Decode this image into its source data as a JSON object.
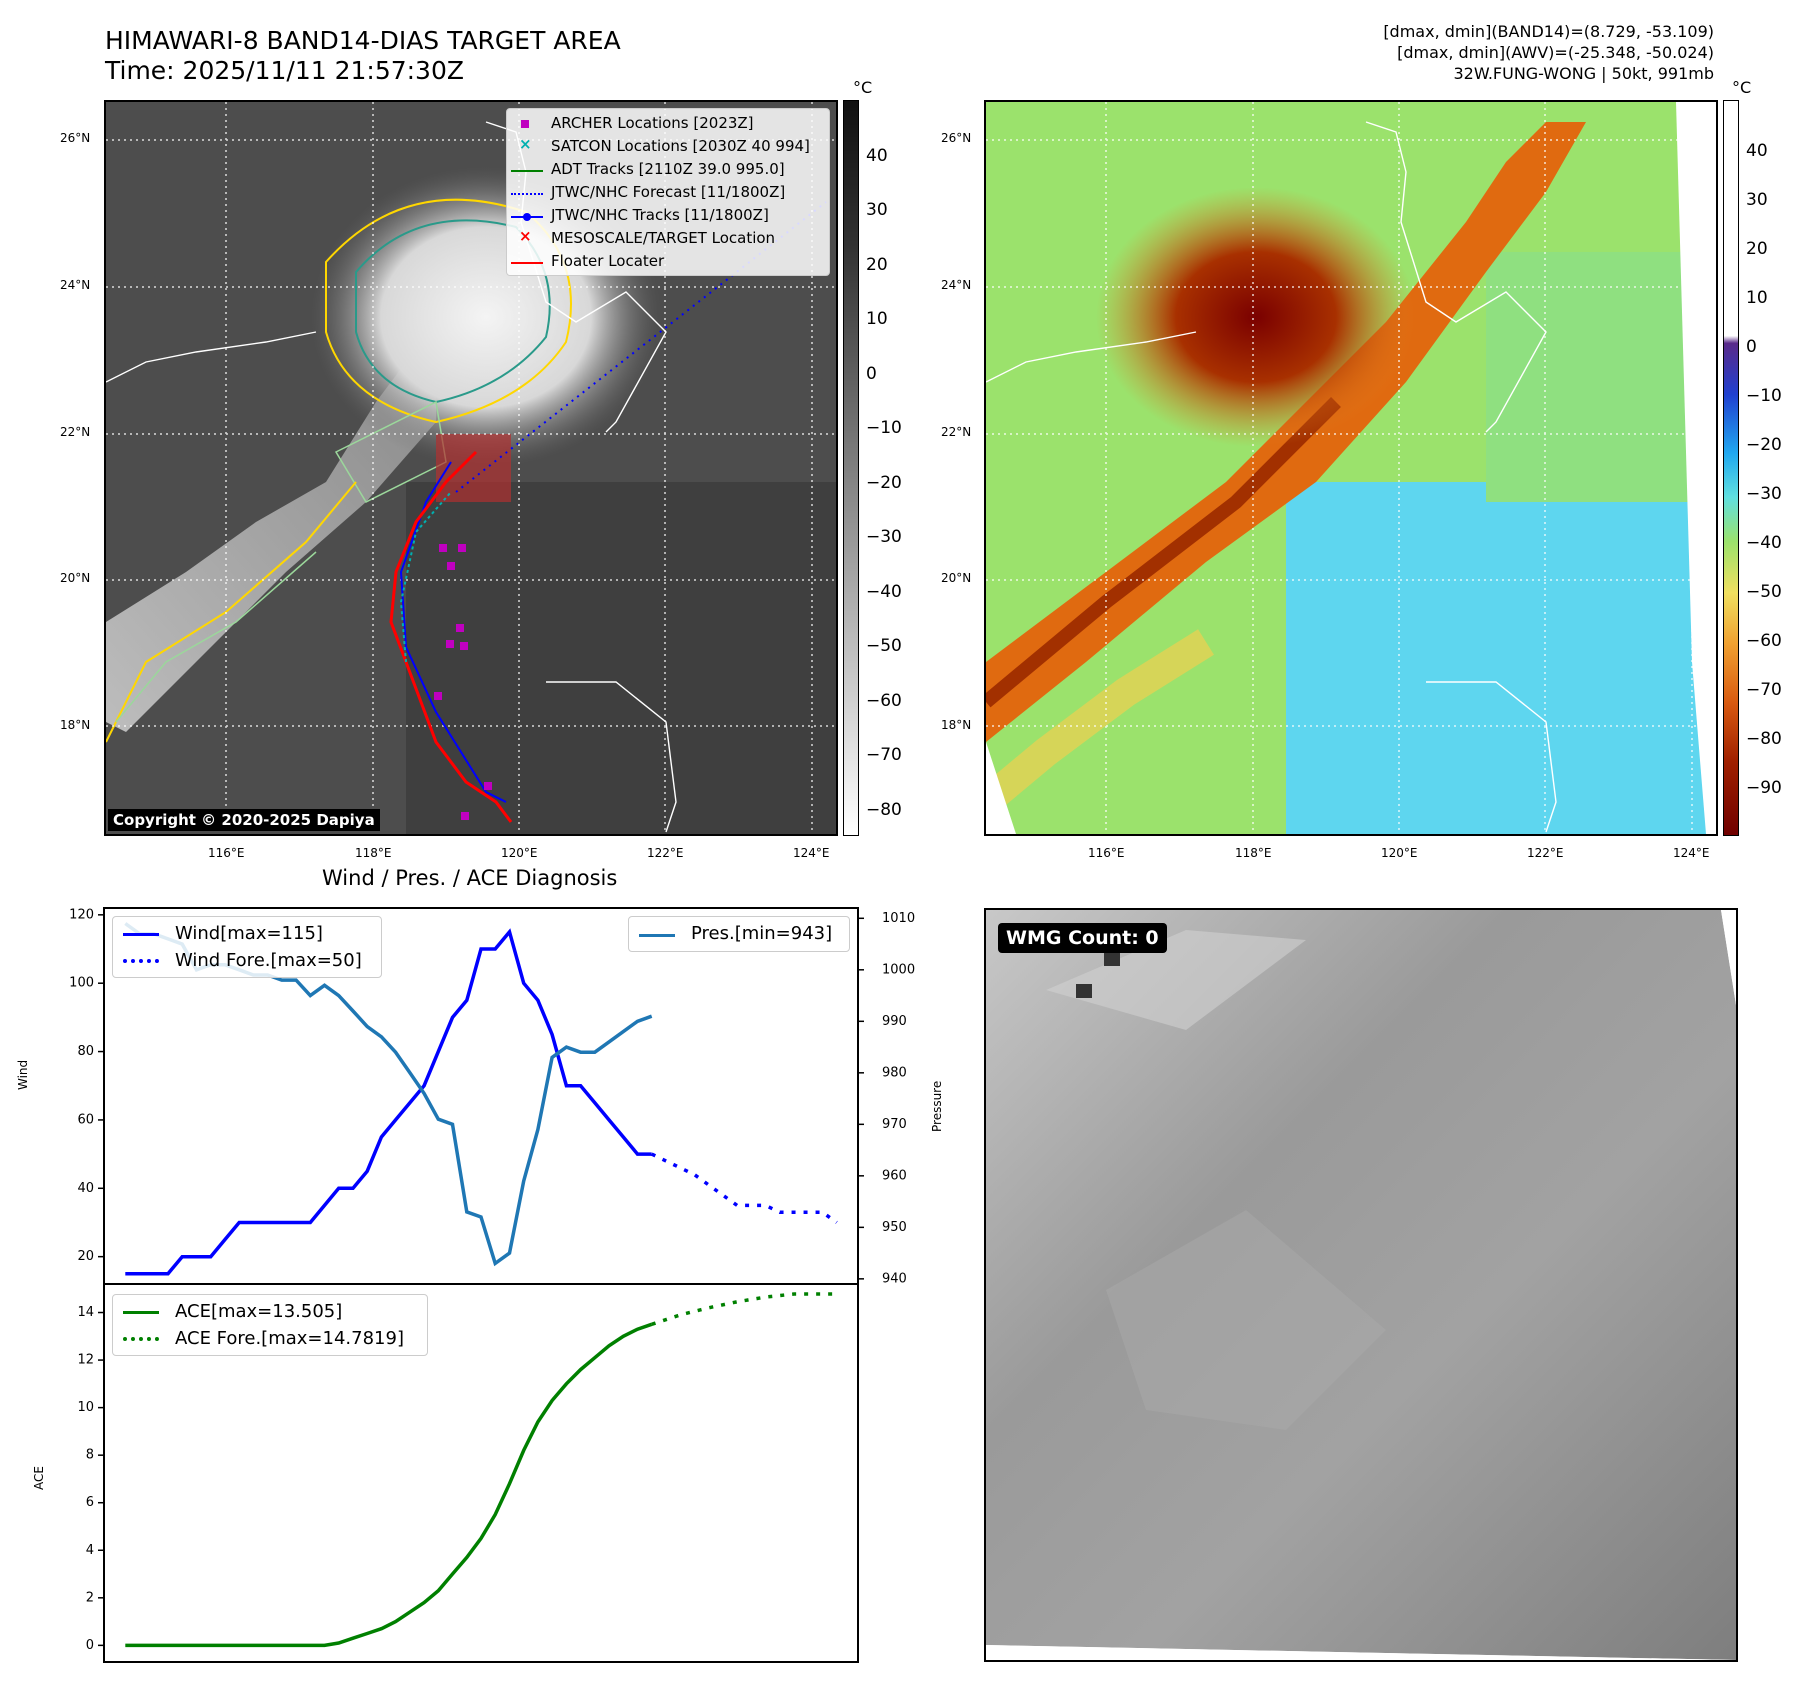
{
  "header": {
    "title_line1": "HIMAWARI-8 BAND14-DIAS TARGET AREA",
    "title_line2": "Time: 2025/11/11 21:57:30Z",
    "info_line1": "[dmax, dmin](BAND14)=(8.729, -53.109)",
    "info_line2": "[dmax, dmin](AWV)=(-25.348, -50.024)",
    "info_line3": "32W.FUNG-WONG | 50kt, 991mb"
  },
  "map_panel_left": {
    "lat_labels": [
      "26°N",
      "24°N",
      "22°N",
      "20°N",
      "18°N"
    ],
    "lon_labels": [
      "116°E",
      "118°E",
      "120°E",
      "122°E",
      "124°E"
    ],
    "legend": [
      {
        "label": "ARCHER Locations [2023Z]",
        "marker": "square",
        "color": "#c000c0"
      },
      {
        "label": "SATCON Locations [2030Z 40 994]",
        "marker": "x",
        "color": "#00b0b0"
      },
      {
        "label": "ADT Tracks [2110Z 39.0 995.0]",
        "marker": "line",
        "color": "#008000"
      },
      {
        "label": "JTWC/NHC Forecast [11/1800Z]",
        "marker": "dotted",
        "color": "#0000ff"
      },
      {
        "label": "JTWC/NHC Tracks [11/1800Z]",
        "marker": "line-dot",
        "color": "#0000ff"
      },
      {
        "label": "MESOSCALE/TARGET Location",
        "marker": "x",
        "color": "#ff0000"
      },
      {
        "label": "Floater Locater",
        "marker": "line",
        "color": "#ff0000"
      }
    ],
    "copyright": "Copyright © 2020-2025 Dapiya",
    "colorbar_unit": "°C",
    "colorbar_ticks": [
      "40",
      "30",
      "20",
      "10",
      "0",
      "−10",
      "−20",
      "−30",
      "−40",
      "−50",
      "−60",
      "−70",
      "−80"
    ]
  },
  "map_panel_right": {
    "lat_labels": [
      "26°N",
      "24°N",
      "22°N",
      "20°N",
      "18°N"
    ],
    "lon_labels": [
      "116°E",
      "118°E",
      "120°E",
      "122°E",
      "124°E"
    ],
    "colorbar_unit": "°C",
    "colorbar_ticks": [
      "40",
      "30",
      "20",
      "10",
      "0",
      "−10",
      "−20",
      "−30",
      "−40",
      "−50",
      "−60",
      "−70",
      "−80",
      "−90"
    ]
  },
  "diagnosis": {
    "title": "Wind / Pres. / ACE Diagnosis",
    "wind_ylabel": "Wind",
    "pres_ylabel": "Pressure",
    "ace_ylabel": "ACE",
    "legend_wind": "Wind[max=115]",
    "legend_wind_fore": "Wind Fore.[max=50]",
    "legend_pres": "Pres.[min=943]",
    "legend_ace": "ACE[max=13.505]",
    "legend_ace_fore": "ACE Fore.[max=14.7819]",
    "wind_ticks": [
      "120",
      "100",
      "80",
      "60",
      "40",
      "20"
    ],
    "pres_ticks": [
      "1010",
      "1000",
      "990",
      "980",
      "970",
      "960",
      "950",
      "940"
    ],
    "ace_ticks": [
      "14",
      "12",
      "10",
      "8",
      "6",
      "4",
      "2",
      "0"
    ]
  },
  "wmg_panel": {
    "label": "WMG Count: 0"
  },
  "chart_data": [
    {
      "type": "line",
      "title": "Wind / Pres. / ACE Diagnosis",
      "ylabel": "Wind",
      "ylim": [
        12,
        122
      ],
      "x": [
        0,
        1,
        2,
        3,
        4,
        5,
        6,
        7,
        8,
        9,
        10,
        11,
        12,
        13,
        14,
        15,
        16,
        17,
        18,
        19,
        20,
        21,
        22,
        23,
        24,
        25,
        26,
        27,
        28,
        29,
        30,
        31,
        32,
        33,
        34,
        35,
        36,
        37,
        38,
        39,
        40,
        41,
        42,
        43,
        44,
        45,
        46,
        47,
        48,
        49,
        50
      ],
      "series": [
        {
          "name": "Wind[max=115]",
          "color": "#0000ff",
          "style": "solid",
          "x": [
            0,
            1,
            2,
            3,
            4,
            5,
            6,
            7,
            8,
            9,
            10,
            11,
            12,
            13,
            14,
            15,
            16,
            17,
            18,
            19,
            20,
            21,
            22,
            23,
            24,
            25,
            26,
            27,
            28,
            29,
            30,
            31,
            32,
            33,
            34,
            35,
            36,
            37,
            38,
            39,
            40
          ],
          "values": [
            15,
            15,
            15,
            15,
            20,
            20,
            20,
            25,
            30,
            30,
            30,
            30,
            30,
            30,
            35,
            40,
            40,
            45,
            55,
            60,
            65,
            70,
            80,
            90,
            95,
            110,
            110,
            115,
            100,
            95,
            85,
            70,
            70,
            65,
            60,
            55,
            50,
            50,
            null,
            null,
            null
          ]
        },
        {
          "name": "Wind Fore.[max=50]",
          "color": "#0000ff",
          "style": "dotted",
          "x": [
            37,
            38,
            39,
            40,
            41,
            42,
            43,
            44,
            45,
            46,
            47,
            48,
            49,
            50
          ],
          "values": [
            50,
            48,
            46,
            44,
            41,
            38,
            35,
            35,
            35,
            33,
            33,
            33,
            33,
            30
          ]
        }
      ]
    },
    {
      "type": "line",
      "ylabel": "Pressure",
      "ylim": [
        939,
        1012
      ],
      "series": [
        {
          "name": "Pres.[min=943]",
          "color": "#1f77b4",
          "style": "solid",
          "x": [
            0,
            1,
            2,
            3,
            4,
            5,
            6,
            7,
            8,
            9,
            10,
            11,
            12,
            13,
            14,
            15,
            16,
            17,
            18,
            19,
            20,
            21,
            22,
            23,
            24,
            25,
            26,
            27,
            28,
            29,
            30,
            31,
            32,
            33,
            34,
            35,
            36,
            37
          ],
          "values": [
            1009,
            1007,
            1007,
            1006,
            1005,
            1000,
            1001,
            1001,
            1000,
            999,
            999,
            998,
            998,
            995,
            997,
            995,
            992,
            989,
            987,
            984,
            980,
            976,
            971,
            970,
            953,
            952,
            943,
            945,
            959,
            969,
            983,
            985,
            984,
            984,
            986,
            988,
            990,
            991
          ]
        }
      ]
    },
    {
      "type": "line",
      "ylabel": "ACE",
      "ylim": [
        -0.7,
        15.2
      ],
      "series": [
        {
          "name": "ACE[max=13.505]",
          "color": "#008000",
          "style": "solid",
          "x": [
            0,
            2,
            4,
            6,
            8,
            10,
            12,
            14,
            15,
            16,
            17,
            18,
            19,
            20,
            21,
            22,
            23,
            24,
            25,
            26,
            27,
            28,
            29,
            30,
            31,
            32,
            33,
            34,
            35,
            36,
            37
          ],
          "values": [
            0,
            0,
            0,
            0,
            0,
            0,
            0,
            0,
            0.1,
            0.3,
            0.5,
            0.7,
            1.0,
            1.4,
            1.8,
            2.3,
            3.0,
            3.7,
            4.5,
            5.5,
            6.8,
            8.2,
            9.4,
            10.3,
            11.0,
            11.6,
            12.1,
            12.6,
            13.0,
            13.3,
            13.505
          ]
        },
        {
          "name": "ACE Fore.[max=14.7819]",
          "color": "#008000",
          "style": "dotted",
          "x": [
            37,
            39,
            41,
            43,
            45,
            47,
            49,
            50
          ],
          "values": [
            13.505,
            13.9,
            14.2,
            14.45,
            14.65,
            14.78,
            14.78,
            14.78
          ]
        }
      ]
    }
  ]
}
